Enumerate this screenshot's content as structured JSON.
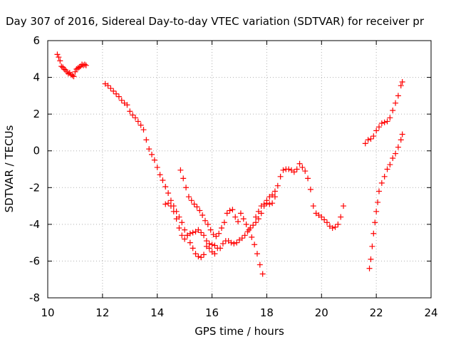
{
  "chart_data": {
    "type": "scatter",
    "title": "Day 307 of 2016, Sidereal Day-to-day VTEC variation (SDTVAR) for receiver pr",
    "xlabel": "GPS time / hours",
    "ylabel": "SDTVAR / TECUs",
    "xlim": [
      10,
      24
    ],
    "ylim": [
      -8,
      6
    ],
    "xticks": [
      "10",
      "12",
      "14",
      "16",
      "18",
      "20",
      "22",
      "24"
    ],
    "yticks": [
      "-8",
      "-6",
      "-4",
      "-2",
      "0",
      "2",
      "4",
      "6"
    ],
    "grid": true,
    "legend": "none",
    "marker": "plus",
    "color": "#ff0000",
    "series": [
      {
        "points": [
          [
            10.35,
            5.25
          ],
          [
            10.4,
            5.1
          ],
          [
            10.45,
            4.9
          ],
          [
            10.5,
            4.6
          ],
          [
            10.55,
            4.55
          ],
          [
            10.6,
            4.45
          ],
          [
            10.65,
            4.4
          ],
          [
            10.7,
            4.3
          ],
          [
            10.75,
            4.2
          ],
          [
            10.8,
            4.25
          ],
          [
            10.85,
            4.15
          ],
          [
            10.9,
            4.1
          ],
          [
            10.95,
            4.05
          ],
          [
            11.0,
            4.3
          ],
          [
            11.05,
            4.45
          ],
          [
            11.1,
            4.5
          ],
          [
            11.15,
            4.55
          ],
          [
            11.2,
            4.6
          ],
          [
            11.25,
            4.7
          ],
          [
            11.3,
            4.65
          ],
          [
            11.35,
            4.7
          ],
          [
            11.4,
            4.65
          ]
        ]
      },
      {
        "points": [
          [
            12.1,
            3.65
          ],
          [
            12.2,
            3.55
          ],
          [
            12.3,
            3.4
          ],
          [
            12.4,
            3.25
          ],
          [
            12.5,
            3.1
          ],
          [
            12.6,
            2.95
          ],
          [
            12.7,
            2.75
          ],
          [
            12.8,
            2.6
          ],
          [
            12.9,
            2.5
          ],
          [
            13.0,
            2.15
          ],
          [
            13.1,
            1.95
          ],
          [
            13.2,
            1.8
          ],
          [
            13.3,
            1.6
          ],
          [
            13.4,
            1.4
          ],
          [
            13.5,
            1.15
          ],
          [
            13.6,
            0.6
          ],
          [
            13.7,
            0.1
          ],
          [
            13.8,
            -0.2
          ],
          [
            13.9,
            -0.5
          ],
          [
            14.0,
            -0.9
          ],
          [
            14.1,
            -1.3
          ],
          [
            14.2,
            -1.6
          ],
          [
            14.3,
            -1.95
          ],
          [
            14.4,
            -2.3
          ],
          [
            14.5,
            -2.7
          ],
          [
            14.6,
            -3.0
          ],
          [
            14.7,
            -3.3
          ],
          [
            14.8,
            -3.6
          ],
          [
            14.9,
            -3.9
          ],
          [
            15.0,
            -4.3
          ],
          [
            15.1,
            -4.6
          ],
          [
            15.2,
            -5.0
          ],
          [
            15.3,
            -5.3
          ],
          [
            15.4,
            -5.6
          ],
          [
            15.5,
            -5.75
          ],
          [
            15.6,
            -5.8
          ],
          [
            15.7,
            -5.65
          ],
          [
            15.8,
            -5.2
          ],
          [
            15.9,
            -5.05
          ],
          [
            16.0,
            -5.1
          ],
          [
            16.1,
            -5.15
          ],
          [
            16.2,
            -5.3
          ],
          [
            16.3,
            -5.3
          ],
          [
            16.4,
            -5.05
          ],
          [
            16.5,
            -4.9
          ],
          [
            16.6,
            -4.9
          ],
          [
            16.7,
            -5.0
          ],
          [
            16.8,
            -5.05
          ],
          [
            16.9,
            -5.0
          ],
          [
            17.0,
            -4.85
          ],
          [
            17.1,
            -4.75
          ],
          [
            17.2,
            -4.6
          ],
          [
            17.3,
            -4.4
          ],
          [
            17.4,
            -4.2
          ],
          [
            17.5,
            -4.05
          ],
          [
            17.6,
            -3.9
          ],
          [
            17.7,
            -3.7
          ],
          [
            17.8,
            -3.4
          ],
          [
            17.9,
            -3.0
          ],
          [
            18.0,
            -2.7
          ],
          [
            18.1,
            -2.5
          ],
          [
            18.2,
            -2.4
          ],
          [
            18.3,
            -2.2
          ],
          [
            18.4,
            -1.9
          ],
          [
            18.5,
            -1.4
          ],
          [
            18.6,
            -1.05
          ],
          [
            18.7,
            -1.0
          ],
          [
            18.8,
            -1.0
          ],
          [
            18.9,
            -1.05
          ],
          [
            19.0,
            -1.15
          ],
          [
            19.1,
            -1.0
          ],
          [
            19.2,
            -0.7
          ],
          [
            19.3,
            -0.9
          ],
          [
            19.4,
            -1.1
          ],
          [
            19.5,
            -1.5
          ],
          [
            19.6,
            -2.1
          ],
          [
            19.7,
            -3.0
          ],
          [
            19.8,
            -3.4
          ],
          [
            19.9,
            -3.5
          ],
          [
            20.0,
            -3.6
          ],
          [
            20.1,
            -3.75
          ],
          [
            20.2,
            -3.9
          ],
          [
            20.3,
            -4.1
          ],
          [
            20.4,
            -4.2
          ],
          [
            20.5,
            -4.15
          ],
          [
            20.6,
            -4.0
          ],
          [
            20.7,
            -3.6
          ],
          [
            20.8,
            -3.0
          ]
        ]
      },
      {
        "points": [
          [
            14.3,
            -2.9
          ],
          [
            14.4,
            -2.85
          ],
          [
            14.5,
            -3.0
          ],
          [
            14.6,
            -3.3
          ],
          [
            14.7,
            -3.7
          ],
          [
            14.8,
            -4.2
          ],
          [
            14.9,
            -4.6
          ],
          [
            15.0,
            -4.8
          ],
          [
            15.1,
            -4.6
          ],
          [
            15.2,
            -4.5
          ],
          [
            15.3,
            -4.45
          ],
          [
            15.4,
            -4.4
          ],
          [
            15.5,
            -4.3
          ],
          [
            15.6,
            -4.45
          ],
          [
            15.7,
            -4.6
          ],
          [
            15.8,
            -4.9
          ],
          [
            15.9,
            -5.3
          ],
          [
            16.0,
            -5.5
          ],
          [
            16.1,
            -5.6
          ]
        ]
      },
      {
        "points": [
          [
            14.85,
            -1.05
          ],
          [
            14.95,
            -1.5
          ],
          [
            15.05,
            -2.0
          ],
          [
            15.15,
            -2.5
          ],
          [
            15.25,
            -2.7
          ],
          [
            15.35,
            -2.9
          ],
          [
            15.45,
            -3.05
          ],
          [
            15.55,
            -3.25
          ],
          [
            15.65,
            -3.5
          ],
          [
            15.75,
            -3.8
          ],
          [
            15.85,
            -4.0
          ],
          [
            15.95,
            -4.3
          ],
          [
            16.05,
            -4.55
          ],
          [
            16.15,
            -4.65
          ],
          [
            16.25,
            -4.5
          ],
          [
            16.35,
            -4.2
          ],
          [
            16.45,
            -3.9
          ],
          [
            16.55,
            -3.4
          ],
          [
            16.65,
            -3.25
          ],
          [
            16.75,
            -3.2
          ],
          [
            16.85,
            -3.6
          ],
          [
            16.95,
            -3.85
          ],
          [
            17.05,
            -3.4
          ],
          [
            17.15,
            -3.7
          ],
          [
            17.25,
            -4.0
          ],
          [
            17.35,
            -4.3
          ],
          [
            17.45,
            -4.7
          ],
          [
            17.55,
            -5.1
          ],
          [
            17.65,
            -5.6
          ],
          [
            17.75,
            -6.2
          ],
          [
            17.85,
            -6.7
          ]
        ]
      },
      {
        "points": [
          [
            17.6,
            -3.6
          ],
          [
            17.7,
            -3.3
          ],
          [
            17.8,
            -3.0
          ],
          [
            17.9,
            -2.9
          ],
          [
            18.0,
            -2.85
          ],
          [
            18.1,
            -2.9
          ],
          [
            18.2,
            -2.85
          ],
          [
            18.3,
            -2.5
          ]
        ]
      },
      {
        "points": [
          [
            21.6,
            0.4
          ],
          [
            21.7,
            0.6
          ],
          [
            21.8,
            0.65
          ],
          [
            21.9,
            0.8
          ],
          [
            22.0,
            1.1
          ],
          [
            22.1,
            1.3
          ],
          [
            22.2,
            1.5
          ],
          [
            22.3,
            1.55
          ],
          [
            22.4,
            1.6
          ],
          [
            22.5,
            1.8
          ],
          [
            22.6,
            2.2
          ],
          [
            22.7,
            2.6
          ],
          [
            22.8,
            3.0
          ],
          [
            22.9,
            3.55
          ],
          [
            22.95,
            3.75
          ]
        ]
      },
      {
        "points": [
          [
            21.75,
            -6.4
          ],
          [
            21.8,
            -5.9
          ],
          [
            21.85,
            -5.2
          ],
          [
            21.9,
            -4.5
          ],
          [
            21.95,
            -3.9
          ],
          [
            22.0,
            -3.3
          ],
          [
            22.05,
            -2.8
          ],
          [
            22.1,
            -2.2
          ],
          [
            22.2,
            -1.75
          ],
          [
            22.3,
            -1.4
          ],
          [
            22.4,
            -1.0
          ],
          [
            22.5,
            -0.75
          ],
          [
            22.6,
            -0.4
          ],
          [
            22.7,
            -0.15
          ],
          [
            22.8,
            0.2
          ],
          [
            22.9,
            0.6
          ],
          [
            22.95,
            0.9
          ]
        ]
      }
    ]
  }
}
